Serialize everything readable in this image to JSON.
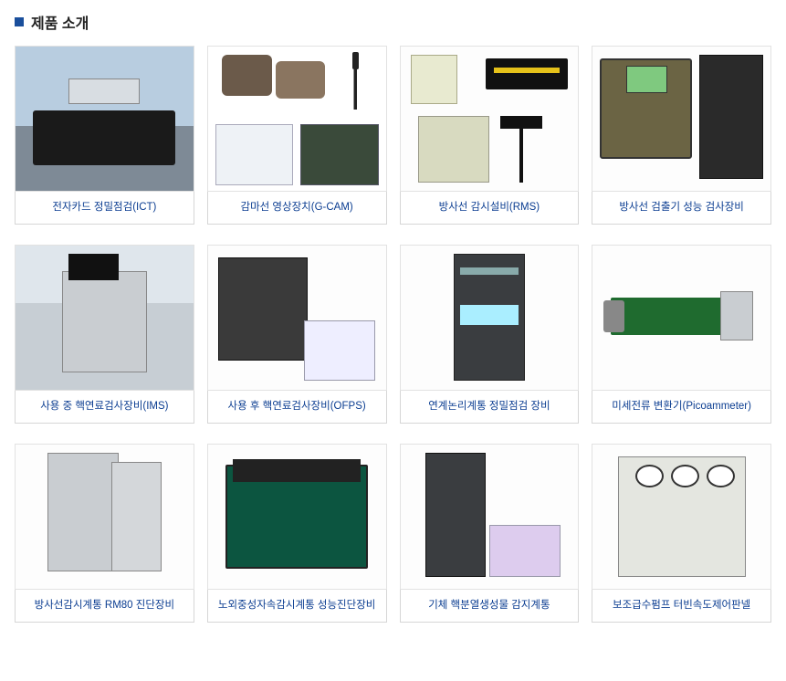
{
  "section": {
    "title": "제품 소개"
  },
  "products": [
    {
      "label": "전자카드 정밀점검(ICT)"
    },
    {
      "label": "감마선 영상장치(G-CAM)"
    },
    {
      "label": "방사선 감시설비(RMS)"
    },
    {
      "label": "방사선 검출기 성능 검사장비"
    },
    {
      "label": "사용 중 핵연료검사장비(IMS)"
    },
    {
      "label": "사용 후 핵연료검사장비(OFPS)"
    },
    {
      "label": "연계논리계통 정밀점검 장비"
    },
    {
      "label": "미세전류 변환기(Picoammeter)"
    },
    {
      "label": "방사선감시계통 RM80 진단장비"
    },
    {
      "label": "노외중성자속감시계통 성능진단장비"
    },
    {
      "label": "기체 핵분열생성물 감지계통"
    },
    {
      "label": "보조급수펌프 터빈속도제어판넬"
    }
  ],
  "colors": {
    "accent": "#1a4f9c",
    "label_text": "#0b3d91",
    "border": "#d6d6d6",
    "thumb_border": "#e2e2e2"
  }
}
